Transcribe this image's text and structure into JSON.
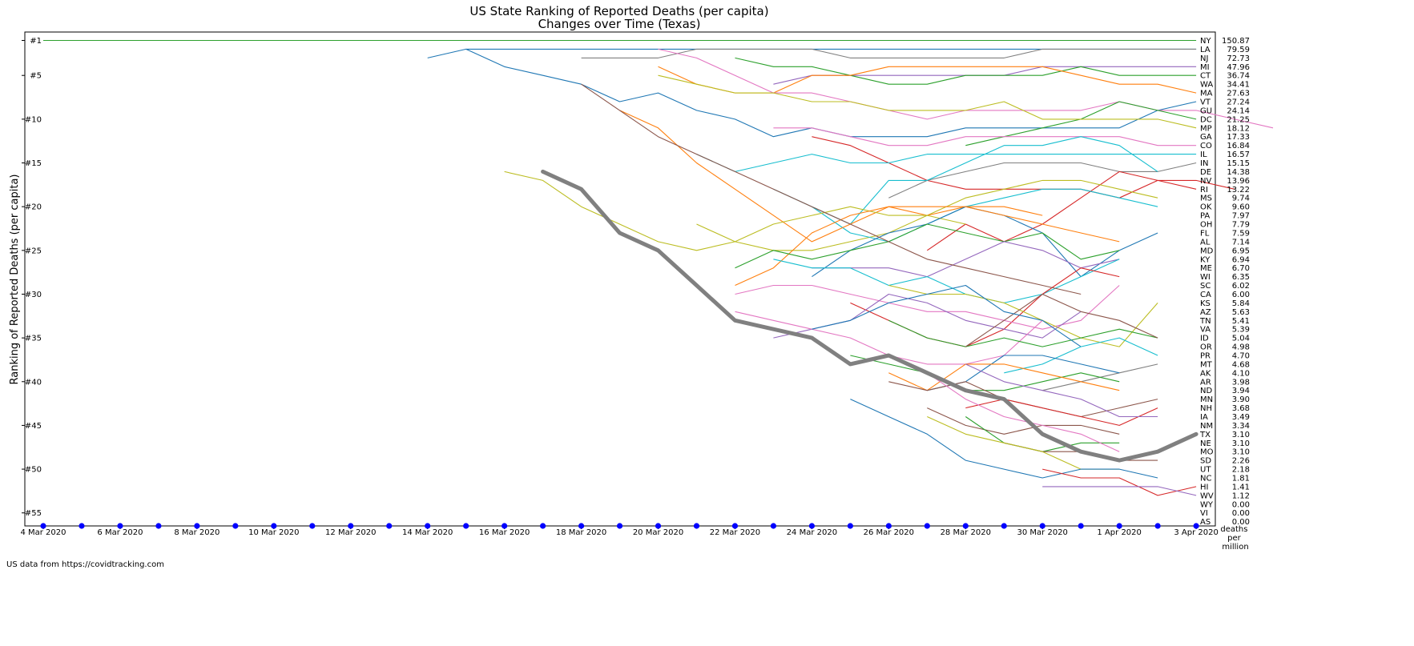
{
  "chart_data": {
    "type": "line",
    "title": "US State Ranking of Reported Deaths (per capita)",
    "subtitle": "Changes over Time (Texas)",
    "ylabel": "Ranking of Reported Deaths (per capita)",
    "xlabel": "",
    "x": [
      "4 Mar 2020",
      "5 Mar 2020",
      "6 Mar 2020",
      "7 Mar 2020",
      "8 Mar 2020",
      "9 Mar 2020",
      "10 Mar 2020",
      "11 Mar 2020",
      "12 Mar 2020",
      "13 Mar 2020",
      "14 Mar 2020",
      "15 Mar 2020",
      "16 Mar 2020",
      "17 Mar 2020",
      "18 Mar 2020",
      "19 Mar 2020",
      "20 Mar 2020",
      "21 Mar 2020",
      "22 Mar 2020",
      "23 Mar 2020",
      "24 Mar 2020",
      "25 Mar 2020",
      "26 Mar 2020",
      "27 Mar 2020",
      "28 Mar 2020",
      "29 Mar 2020",
      "30 Mar 2020",
      "31 Mar 2020",
      "1 Apr 2020",
      "2 Apr 2020",
      "3 Apr 2020"
    ],
    "x_ticks": [
      "4 Mar 2020",
      "6 Mar 2020",
      "8 Mar 2020",
      "10 Mar 2020",
      "12 Mar 2020",
      "14 Mar 2020",
      "16 Mar 2020",
      "18 Mar 2020",
      "20 Mar 2020",
      "22 Mar 2020",
      "24 Mar 2020",
      "26 Mar 2020",
      "28 Mar 2020",
      "30 Mar 2020",
      "1 Apr 2020",
      "3 Apr 2020"
    ],
    "y_ticks": [
      "#1",
      "#5",
      "#10",
      "#15",
      "#20",
      "#25",
      "#30",
      "#35",
      "#40",
      "#45",
      "#50",
      "#55"
    ],
    "y_tick_values": [
      1,
      5,
      10,
      15,
      20,
      25,
      30,
      35,
      40,
      45,
      50,
      55
    ],
    "ylim": [
      57.5,
      0
    ],
    "right_column_label": "deaths per million",
    "highlight": {
      "name": "TX",
      "color": "#808080",
      "start_index": 13,
      "ranks": [
        16,
        18,
        23,
        25,
        29,
        33,
        34,
        35,
        38,
        37,
        39,
        41,
        42,
        46,
        48,
        49,
        48,
        46
      ]
    },
    "zero_marker_color": "#0000ff",
    "final_ranking": [
      {
        "state": "NY",
        "value": "150.87"
      },
      {
        "state": "LA",
        "value": "79.59"
      },
      {
        "state": "NJ",
        "value": "72.73"
      },
      {
        "state": "MI",
        "value": "47.96"
      },
      {
        "state": "CT",
        "value": "36.74"
      },
      {
        "state": "WA",
        "value": "34.41"
      },
      {
        "state": "MA",
        "value": "27.63"
      },
      {
        "state": "VT",
        "value": "27.24"
      },
      {
        "state": "GU",
        "value": "24.14"
      },
      {
        "state": "DC",
        "value": "21.25"
      },
      {
        "state": "MP",
        "value": "18.12"
      },
      {
        "state": "GA",
        "value": "17.33"
      },
      {
        "state": "CO",
        "value": "16.84"
      },
      {
        "state": "IL",
        "value": "16.57"
      },
      {
        "state": "IN",
        "value": "15.15"
      },
      {
        "state": "DE",
        "value": "14.38"
      },
      {
        "state": "NV",
        "value": "13.96"
      },
      {
        "state": "RI",
        "value": "13.22"
      },
      {
        "state": "MS",
        "value": "9.74"
      },
      {
        "state": "OK",
        "value": "9.60"
      },
      {
        "state": "PA",
        "value": "7.97"
      },
      {
        "state": "OH",
        "value": "7.79"
      },
      {
        "state": "FL",
        "value": "7.59"
      },
      {
        "state": "AL",
        "value": "7.14"
      },
      {
        "state": "MD",
        "value": "6.95"
      },
      {
        "state": "KY",
        "value": "6.94"
      },
      {
        "state": "ME",
        "value": "6.70"
      },
      {
        "state": "WI",
        "value": "6.35"
      },
      {
        "state": "SC",
        "value": "6.02"
      },
      {
        "state": "CA",
        "value": "6.00"
      },
      {
        "state": "KS",
        "value": "5.84"
      },
      {
        "state": "AZ",
        "value": "5.63"
      },
      {
        "state": "TN",
        "value": "5.41"
      },
      {
        "state": "VA",
        "value": "5.39"
      },
      {
        "state": "ID",
        "value": "5.04"
      },
      {
        "state": "OR",
        "value": "4.98"
      },
      {
        "state": "PR",
        "value": "4.70"
      },
      {
        "state": "MT",
        "value": "4.68"
      },
      {
        "state": "AK",
        "value": "4.10"
      },
      {
        "state": "AR",
        "value": "3.98"
      },
      {
        "state": "ND",
        "value": "3.94"
      },
      {
        "state": "MN",
        "value": "3.90"
      },
      {
        "state": "NH",
        "value": "3.68"
      },
      {
        "state": "IA",
        "value": "3.49"
      },
      {
        "state": "NM",
        "value": "3.34"
      },
      {
        "state": "TX",
        "value": "3.10"
      },
      {
        "state": "NE",
        "value": "3.10"
      },
      {
        "state": "MO",
        "value": "3.10"
      },
      {
        "state": "SD",
        "value": "2.26"
      },
      {
        "state": "UT",
        "value": "2.18"
      },
      {
        "state": "NC",
        "value": "1.81"
      },
      {
        "state": "HI",
        "value": "1.41"
      },
      {
        "state": "WV",
        "value": "1.12"
      },
      {
        "state": "WY",
        "value": "0.00"
      },
      {
        "state": "VI",
        "value": "0.00"
      },
      {
        "state": "AS",
        "value": "0.00"
      }
    ],
    "series": [
      {
        "name": "NY",
        "color": "#2ca02c",
        "start_index": 0,
        "ranks": [
          1,
          1,
          1,
          1,
          1,
          1,
          1,
          1,
          1,
          1,
          1,
          1,
          1,
          1,
          1,
          1,
          1,
          1,
          1,
          1,
          1,
          1,
          1,
          1,
          1,
          1,
          1,
          1,
          1,
          1,
          1
        ]
      },
      {
        "name": "LA",
        "color": "#1f77b4",
        "start_index": 11,
        "ranks": [
          2,
          2,
          2,
          2,
          2,
          2,
          2,
          2,
          2,
          2,
          2,
          2,
          2,
          2,
          2,
          2,
          2,
          2,
          2,
          2
        ]
      },
      {
        "name": "NJ",
        "color": "#808080",
        "start_index": 14,
        "ranks": [
          3,
          3,
          3,
          2,
          2,
          2,
          2,
          3,
          3,
          3,
          3,
          3,
          2,
          2,
          2,
          2,
          2
        ]
      },
      {
        "name": "MI",
        "color": "#9467bd",
        "start_index": 19,
        "ranks": [
          6,
          5,
          5,
          5,
          5,
          5,
          5,
          4,
          4,
          4,
          4,
          4
        ]
      },
      {
        "name": "CT",
        "color": "#2ca02c",
        "start_index": 18,
        "ranks": [
          3,
          4,
          4,
          5,
          6,
          6,
          5,
          5,
          5,
          4,
          5,
          5,
          5
        ]
      },
      {
        "name": "WA",
        "color": "#ff7f0e",
        "start_index": 16,
        "ranks": [
          4,
          6,
          7,
          7,
          5,
          5,
          4,
          4,
          4,
          4,
          4,
          5,
          6,
          6,
          7
        ]
      },
      {
        "name": "MA",
        "color": "#1f77b4",
        "start_index": 10,
        "ranks": [
          3,
          2,
          4,
          5,
          6,
          8,
          7,
          9,
          10,
          12,
          11,
          12,
          12,
          12,
          11,
          11,
          11,
          11,
          11,
          9,
          8
        ]
      },
      {
        "name": "VT",
        "color": "#e377c2",
        "start_index": 16,
        "ranks": [
          2,
          3,
          5,
          7,
          7,
          8,
          9,
          10,
          9,
          9,
          9,
          9,
          8,
          9,
          9,
          10,
          11
        ]
      },
      {
        "name": "GU",
        "color": "#2ca02c",
        "start_index": 24,
        "ranks": [
          13,
          12,
          11,
          10,
          8,
          9,
          10
        ]
      },
      {
        "name": "DC",
        "color": "#bcbd22",
        "start_index": 16,
        "ranks": [
          5,
          6,
          7,
          7,
          8,
          8,
          9,
          9,
          9,
          8,
          10,
          10,
          10,
          10,
          11
        ]
      },
      {
        "name": "GA",
        "color": "#d62728",
        "start_index": 20,
        "ranks": [
          12,
          13,
          15,
          17,
          18,
          18,
          18,
          18,
          19,
          17,
          17,
          18
        ]
      },
      {
        "name": "CO",
        "color": "#e377c2",
        "start_index": 19,
        "ranks": [
          11,
          11,
          12,
          13,
          13,
          12,
          12,
          12,
          12,
          12,
          13,
          13
        ]
      },
      {
        "name": "IL",
        "color": "#17becf",
        "start_index": 17,
        "ranks": [
          14,
          16,
          15,
          14,
          15,
          15,
          14,
          14,
          14,
          14,
          14,
          14,
          14,
          14
        ]
      },
      {
        "name": "IN",
        "color": "#7f7f7f",
        "start_index": 22,
        "ranks": [
          19,
          17,
          16,
          15,
          15,
          15,
          16,
          16,
          15
        ]
      },
      {
        "name": "DE",
        "color": "#17becf",
        "start_index": 20,
        "ranks": [
          20,
          22,
          17,
          17,
          15,
          13,
          13,
          12,
          13,
          16
        ]
      },
      {
        "name": "RI",
        "color": "#d62728",
        "start_index": 23,
        "ranks": [
          25,
          22,
          24,
          22,
          19,
          16,
          17,
          18
        ]
      },
      {
        "name": "MS",
        "color": "#bcbd22",
        "start_index": 17,
        "ranks": [
          22,
          24,
          25,
          25,
          24,
          23,
          21,
          19,
          18,
          17,
          17,
          18,
          19
        ]
      },
      {
        "name": "OK",
        "color": "#17becf",
        "start_index": 19,
        "ranks": [
          18,
          20,
          23,
          24,
          22,
          20,
          19,
          18,
          18,
          19,
          20
        ]
      },
      {
        "name": "PA",
        "color": "#ff7f0e",
        "start_index": 15,
        "ranks": [
          9,
          11,
          15,
          18,
          21,
          24,
          22,
          20,
          21,
          20,
          20,
          21
        ]
      },
      {
        "name": "OH",
        "color": "#bcbd22",
        "start_index": 12,
        "ranks": [
          16,
          17,
          20,
          22,
          24,
          25,
          24,
          22,
          21,
          20,
          21,
          21,
          22
        ]
      },
      {
        "name": "FL",
        "color": "#1f77b4",
        "start_index": 20,
        "ranks": [
          28,
          25,
          23,
          22,
          20,
          21,
          23,
          28,
          25,
          23
        ]
      },
      {
        "name": "AL",
        "color": "#ff7f0e",
        "start_index": 18,
        "ranks": [
          29,
          27,
          23,
          21,
          20,
          20,
          20,
          21,
          22,
          23,
          24
        ]
      },
      {
        "name": "MD",
        "color": "#2ca02c",
        "start_index": 18,
        "ranks": [
          27,
          25,
          26,
          25,
          24,
          22,
          23,
          24,
          23,
          26,
          25
        ]
      },
      {
        "name": "KY",
        "color": "#9467bd",
        "start_index": 20,
        "ranks": [
          27,
          27,
          27,
          28,
          26,
          24,
          25,
          27,
          26
        ]
      },
      {
        "name": "ME",
        "color": "#17becf",
        "start_index": 19,
        "ranks": [
          26,
          27,
          27,
          29,
          28,
          30,
          31,
          30,
          28,
          26
        ]
      },
      {
        "name": "WI",
        "color": "#d62728",
        "start_index": 21,
        "ranks": [
          31,
          33,
          35,
          36,
          34,
          30,
          27,
          28
        ]
      },
      {
        "name": "SC",
        "color": "#e377c2",
        "start_index": 18,
        "ranks": [
          30,
          29,
          29,
          30,
          31,
          32,
          32,
          33,
          34,
          33,
          29
        ]
      },
      {
        "name": "CA",
        "color": "#8c564b",
        "start_index": 14,
        "ranks": [
          6,
          9,
          12,
          14,
          16,
          18,
          20,
          22,
          24,
          26,
          27,
          28,
          29,
          30
        ]
      },
      {
        "name": "KS",
        "color": "#bcbd22",
        "start_index": 22,
        "ranks": [
          29,
          30,
          30,
          31,
          33,
          35,
          36,
          31
        ]
      },
      {
        "name": "AZ",
        "color": "#9467bd",
        "start_index": 19,
        "ranks": [
          35,
          34,
          33,
          30,
          31,
          33,
          34,
          35,
          32
        ]
      },
      {
        "name": "TN",
        "color": "#e377c2",
        "start_index": 18,
        "ranks": [
          32,
          33,
          34,
          35,
          37,
          38,
          38,
          37,
          33
        ]
      },
      {
        "name": "VA",
        "color": "#2ca02c",
        "start_index": 22,
        "ranks": [
          33,
          35,
          36,
          35,
          36,
          35,
          34,
          35
        ]
      },
      {
        "name": "ID",
        "color": "#8c564b",
        "start_index": 24,
        "ranks": [
          36,
          33,
          30,
          32,
          33,
          35
        ]
      },
      {
        "name": "OR",
        "color": "#1f77b4",
        "start_index": 20,
        "ranks": [
          34,
          33,
          31,
          30,
          29,
          32,
          33,
          36
        ]
      },
      {
        "name": "PR",
        "color": "#17becf",
        "start_index": 25,
        "ranks": [
          39,
          38,
          36,
          35,
          37
        ]
      },
      {
        "name": "MT",
        "color": "#7f7f7f",
        "start_index": 26,
        "ranks": [
          41,
          40,
          39,
          38
        ]
      },
      {
        "name": "AK",
        "color": "#1f77b4",
        "start_index": 23,
        "ranks": [
          41,
          40,
          37,
          37,
          38,
          39
        ]
      },
      {
        "name": "AR",
        "color": "#2ca02c",
        "start_index": 21,
        "ranks": [
          37,
          38,
          39,
          41,
          41,
          40,
          39,
          40
        ]
      },
      {
        "name": "ND",
        "color": "#ff7f0e",
        "start_index": 22,
        "ranks": [
          39,
          41,
          38,
          38,
          39,
          40,
          41
        ]
      },
      {
        "name": "MN",
        "color": "#8c564b",
        "start_index": 22,
        "ranks": [
          40,
          41,
          40,
          42,
          43,
          44,
          43,
          42
        ]
      },
      {
        "name": "NH",
        "color": "#d62728",
        "start_index": 24,
        "ranks": [
          43,
          42,
          43,
          44,
          45,
          43
        ]
      },
      {
        "name": "IA",
        "color": "#9467bd",
        "start_index": 24,
        "ranks": [
          38,
          40,
          41,
          42,
          44,
          44
        ]
      },
      {
        "name": "NM",
        "color": "#8c564b",
        "start_index": 23,
        "ranks": [
          43,
          45,
          46,
          45,
          45,
          46
        ]
      },
      {
        "name": "NE",
        "color": "#2ca02c",
        "start_index": 24,
        "ranks": [
          44,
          47,
          48,
          47,
          47
        ]
      },
      {
        "name": "MO",
        "color": "#e377c2",
        "start_index": 23,
        "ranks": [
          39,
          42,
          44,
          45,
          46,
          48
        ]
      },
      {
        "name": "SD",
        "color": "#8c564b",
        "start_index": 25,
        "ranks": [
          47,
          48,
          48,
          49,
          49
        ]
      },
      {
        "name": "UT",
        "color": "#bcbd22",
        "start_index": 23,
        "ranks": [
          44,
          46,
          47,
          48,
          50,
          50
        ]
      },
      {
        "name": "NC",
        "color": "#1f77b4",
        "start_index": 21,
        "ranks": [
          42,
          44,
          46,
          49,
          50,
          51,
          50,
          50,
          51
        ]
      },
      {
        "name": "HI",
        "color": "#d62728",
        "start_index": 26,
        "ranks": [
          50,
          51,
          51,
          53,
          52
        ]
      },
      {
        "name": "WV",
        "color": "#9467bd",
        "start_index": 26,
        "ranks": [
          52,
          52,
          52,
          52,
          53
        ]
      }
    ]
  },
  "footer": {
    "source": "US data from https://covidtracking.com"
  }
}
